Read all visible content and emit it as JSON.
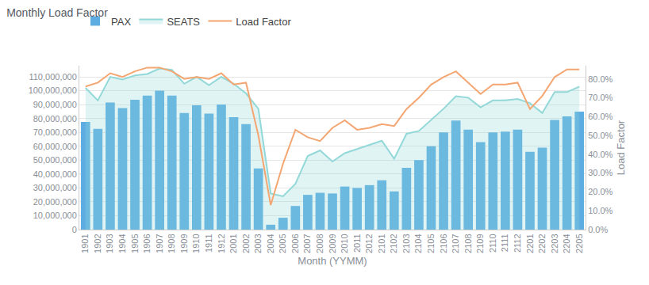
{
  "chart_data": {
    "type": "bar",
    "title": "Monthly Load Factor",
    "x_label": "Month (YYMM)",
    "y2_label": "Load Factor",
    "categories": [
      "1901",
      "1902",
      "1903",
      "1904",
      "1905",
      "1906",
      "1907",
      "1908",
      "1909",
      "1910",
      "1911",
      "1912",
      "2001",
      "2002",
      "2003",
      "2004",
      "2005",
      "2006",
      "2007",
      "2008",
      "2009",
      "2010",
      "2011",
      "2012",
      "2101",
      "2102",
      "2103",
      "2104",
      "2105",
      "2106",
      "2107",
      "2108",
      "2109",
      "2110",
      "2111",
      "2112",
      "2201",
      "2202",
      "2203",
      "2204",
      "2205"
    ],
    "series": [
      {
        "name": "PAX",
        "type": "bar",
        "color": "#5dade2",
        "values": [
          77500000,
          72500000,
          91500000,
          87500000,
          93500000,
          96500000,
          100000000,
          96500000,
          84000000,
          89500000,
          83500000,
          90000000,
          81000000,
          76000000,
          44000000,
          3500000,
          8500000,
          17000000,
          25000000,
          26500000,
          26000000,
          31000000,
          30000000,
          32000000,
          35500000,
          27500000,
          44500000,
          50000000,
          60000000,
          70000000,
          78500000,
          72000000,
          63000000,
          70000000,
          70500000,
          72000000,
          56000000,
          59000000,
          79000000,
          81500000,
          85000000
        ]
      },
      {
        "name": "SEATS",
        "type": "area",
        "color": "#93d8d8",
        "values": [
          102000000,
          93000000,
          110000000,
          108000000,
          111000000,
          112000000,
          116000000,
          115000000,
          105000000,
          110000000,
          104000000,
          110000000,
          105000000,
          98000000,
          87000000,
          26000000,
          24000000,
          33000000,
          53000000,
          57000000,
          49000000,
          55000000,
          58000000,
          61000000,
          64000000,
          51000000,
          69000000,
          71000000,
          79000000,
          87000000,
          96000000,
          95000000,
          88000000,
          93000000,
          93000000,
          94000000,
          91000000,
          84000000,
          99000000,
          99000000,
          103000000
        ]
      },
      {
        "name": "Load Factor",
        "type": "line",
        "axis": "y2",
        "color": "#f4a672",
        "values": [
          76,
          78,
          83,
          81,
          84,
          86,
          86,
          84,
          80,
          81,
          80,
          83,
          77,
          78,
          50,
          13,
          35,
          53,
          49,
          47,
          54,
          58,
          53,
          54,
          56,
          55,
          64,
          70,
          77,
          81,
          84,
          78,
          72,
          77,
          77,
          78,
          64,
          71,
          81,
          85,
          85
        ]
      }
    ],
    "ylim": [
      0,
      118000000
    ],
    "yticks": [
      0,
      {
        "value": 10000000,
        "label": "10,000,000"
      },
      {
        "value": 20000000,
        "label": "20,000,000"
      },
      {
        "value": 30000000,
        "label": "30,000,000"
      },
      {
        "value": 40000000,
        "label": "40,000,000"
      },
      {
        "value": 50000000,
        "label": "50,000,000"
      },
      {
        "value": 60000000,
        "label": "60,000,000"
      },
      {
        "value": 70000000,
        "label": "70,000,000"
      },
      {
        "value": 80000000,
        "label": "80,000,000"
      },
      {
        "value": 90000000,
        "label": "90,000,000"
      },
      {
        "value": 100000000,
        "label": "100,000,000"
      },
      {
        "value": 110000000,
        "label": "110,000,000"
      }
    ],
    "y2lim": [
      0,
      87
    ],
    "y2ticks": [
      {
        "value": 0,
        "label": "0.0%"
      },
      {
        "value": 10,
        "label": "10.0%"
      },
      {
        "value": 20,
        "label": "20.0%"
      },
      {
        "value": 30,
        "label": "30.0%"
      },
      {
        "value": 40,
        "label": "40.0%"
      },
      {
        "value": 50,
        "label": "50.0%"
      },
      {
        "value": 60,
        "label": "60.0%"
      },
      {
        "value": 70,
        "label": "70.0%"
      },
      {
        "value": 80,
        "label": "80.0%"
      }
    ],
    "grid": true,
    "legend": "top-left"
  }
}
